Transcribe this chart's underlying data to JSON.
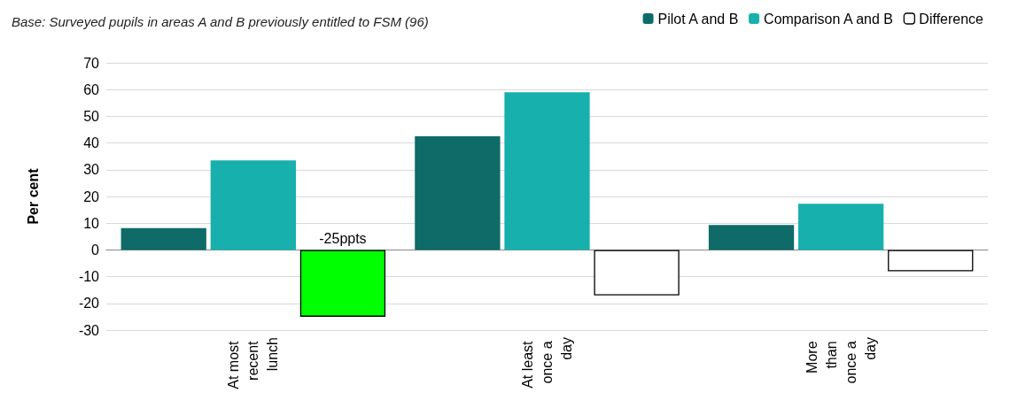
{
  "chart_data": {
    "type": "bar",
    "subtitle": "Base: Surveyed pupils in areas A and B previously entitled to FSM (96)",
    "ylabel": "Per cent",
    "categories": [
      "At most recent lunch",
      "At least once a day",
      "More than once a day"
    ],
    "series": [
      {
        "name": "Pilot A and B",
        "color": "#0e6b68",
        "values": [
          8.2,
          42.5,
          9.3
        ]
      },
      {
        "name": "Comparison A and B",
        "color": "#17b0ac",
        "values": [
          33.5,
          59,
          17.3
        ]
      },
      {
        "name": "Difference",
        "color": "#ffffff",
        "colors": [
          "#00ff00",
          "#ffffff",
          "#ffffff"
        ],
        "values": [
          -25,
          -17,
          -8
        ],
        "value_labels": [
          "-25ppts",
          null,
          null
        ]
      }
    ],
    "ylim": [
      -30,
      70
    ],
    "yticks": [
      -30,
      -20,
      -10,
      0,
      10,
      20,
      30,
      40,
      50,
      60,
      70
    ],
    "grid": "y",
    "legend": "top right"
  }
}
